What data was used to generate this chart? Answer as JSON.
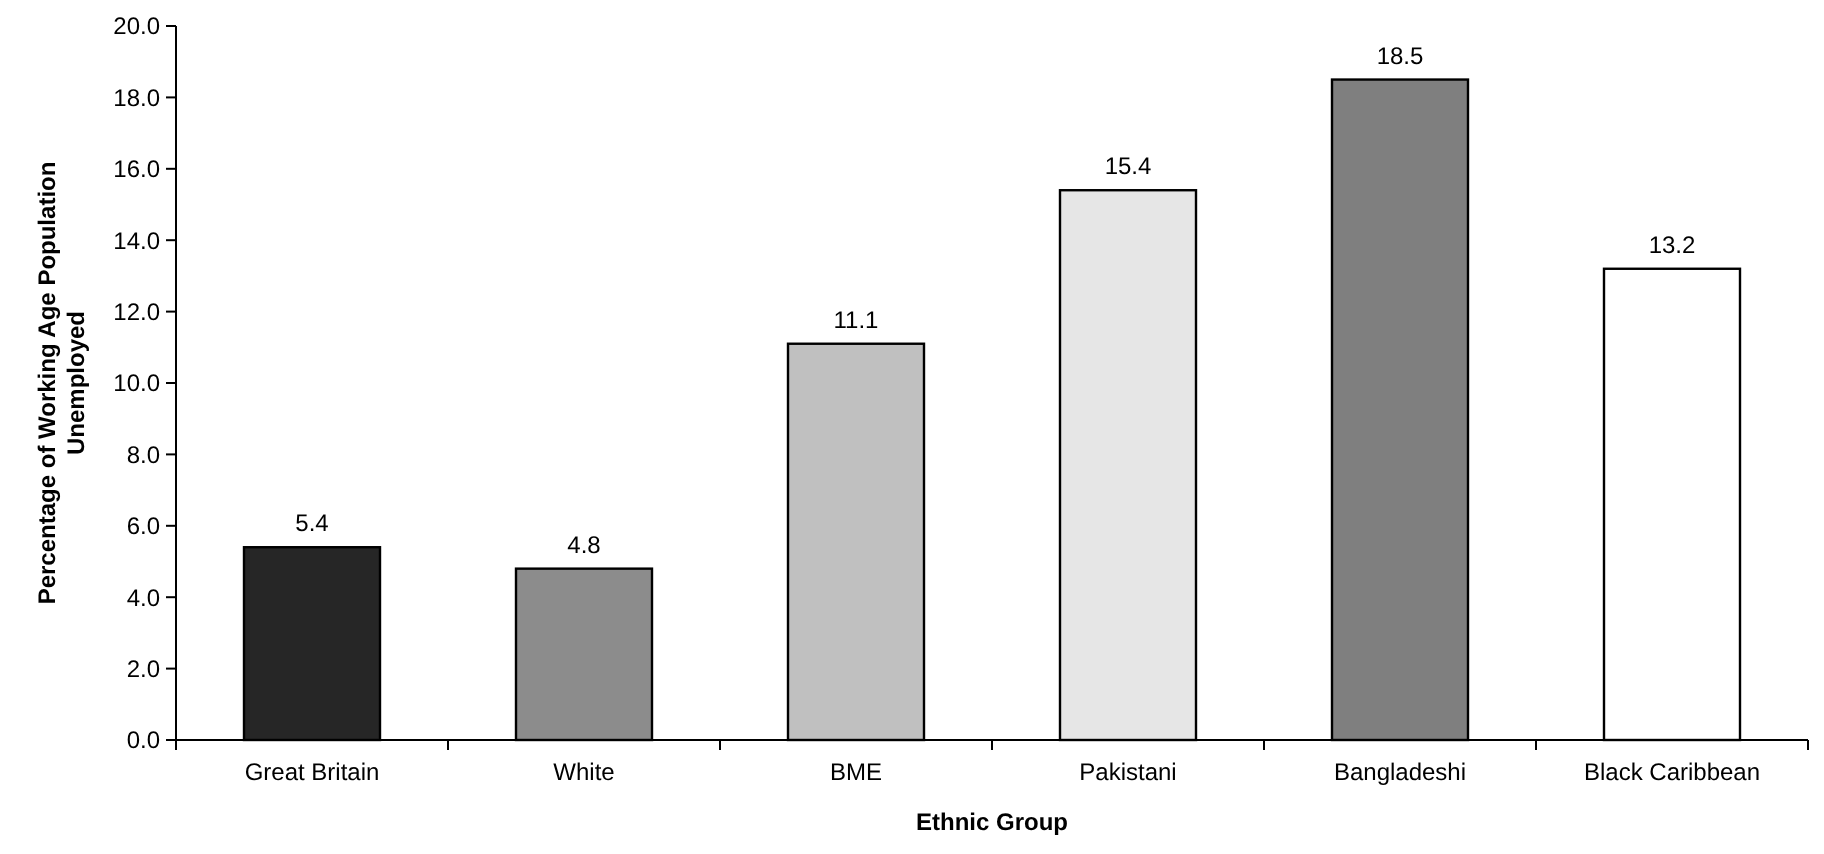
{
  "chart_data": {
    "type": "bar",
    "xlabel": "Ethnic Group",
    "ylabel": "Percentage of Working Age Population Unemployed",
    "categories": [
      "Great Britain",
      "White",
      "BME",
      "Pakistani",
      "Bangladeshi",
      "Black Caribbean"
    ],
    "values": [
      5.4,
      4.8,
      11.1,
      15.4,
      18.5,
      13.2
    ],
    "colors": [
      "#262626",
      "#8c8c8c",
      "#c0c0c0",
      "#e6e6e6",
      "#7f7f7f",
      "#ffffff"
    ],
    "ylim": [
      0,
      20
    ],
    "yticks": [
      {
        "value": 0,
        "label": "0.0"
      },
      {
        "value": 2,
        "label": "2.0"
      },
      {
        "value": 4,
        "label": "4.0"
      },
      {
        "value": 6,
        "label": "6.0"
      },
      {
        "value": 8,
        "label": "8.0"
      },
      {
        "value": 10,
        "label": "10.0"
      },
      {
        "value": 12,
        "label": "12.0"
      },
      {
        "value": 14,
        "label": "14.0"
      },
      {
        "value": 16,
        "label": "16.0"
      },
      {
        "value": 18,
        "label": "18.0"
      },
      {
        "value": 20,
        "label": "20.0"
      }
    ],
    "data_labels": true,
    "grid": false
  }
}
